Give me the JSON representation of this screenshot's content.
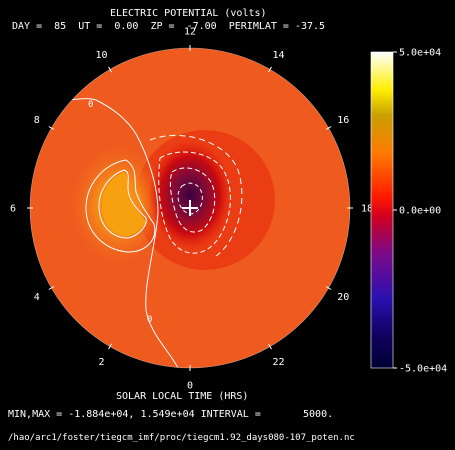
{
  "header": {
    "title": "ELECTRIC POTENTIAL (volts)",
    "params": "DAY =  85  UT =  0.00  ZP =  -7.00  PERIMLAT = -37.5"
  },
  "footer": {
    "minmax": "MIN,MAX = -1.884e+04, 1.549e+04 INTERVAL =       5000.",
    "path": "/hao/arc1/foster/tiegcm_imf/proc/tiegcm1.92_days080-107_poten.nc"
  },
  "chart_data": {
    "type": "heatmap",
    "projection": "polar",
    "title": "ELECTRIC POTENTIAL (volts)",
    "subtitle": "DAY =  85  UT =  0.00  ZP =  -7.00  PERIMLAT = -37.5",
    "xlabel": "SOLAR LOCAL TIME (HRS)",
    "local_time_ticks": [
      "12",
      "14",
      "16",
      "18",
      "20",
      "22",
      "0",
      "2",
      "4",
      "6",
      "8",
      "10"
    ],
    "local_time_values": [
      12,
      14,
      16,
      18,
      20,
      22,
      0,
      2,
      4,
      6,
      8,
      10
    ],
    "colorbar": {
      "min": -50000,
      "max": 50000,
      "tick_labels": [
        "5.0e+04",
        "0.0e+00",
        "-5.0e+04"
      ],
      "tick_values": [
        50000,
        0,
        -50000
      ]
    },
    "value_min": -18840,
    "value_max": 15490,
    "contour_interval": 5000,
    "contour_labels": [
      "0",
      "0"
    ],
    "perimlat": -37.5,
    "colors": {
      "background": "#ef5a1f",
      "colorbar": [
        "#000033",
        "#1a0080",
        "#8a0a8a",
        "#ff0000",
        "#ff6a00",
        "#ffcc00",
        "#ffff66",
        "#ffffff"
      ]
    }
  }
}
